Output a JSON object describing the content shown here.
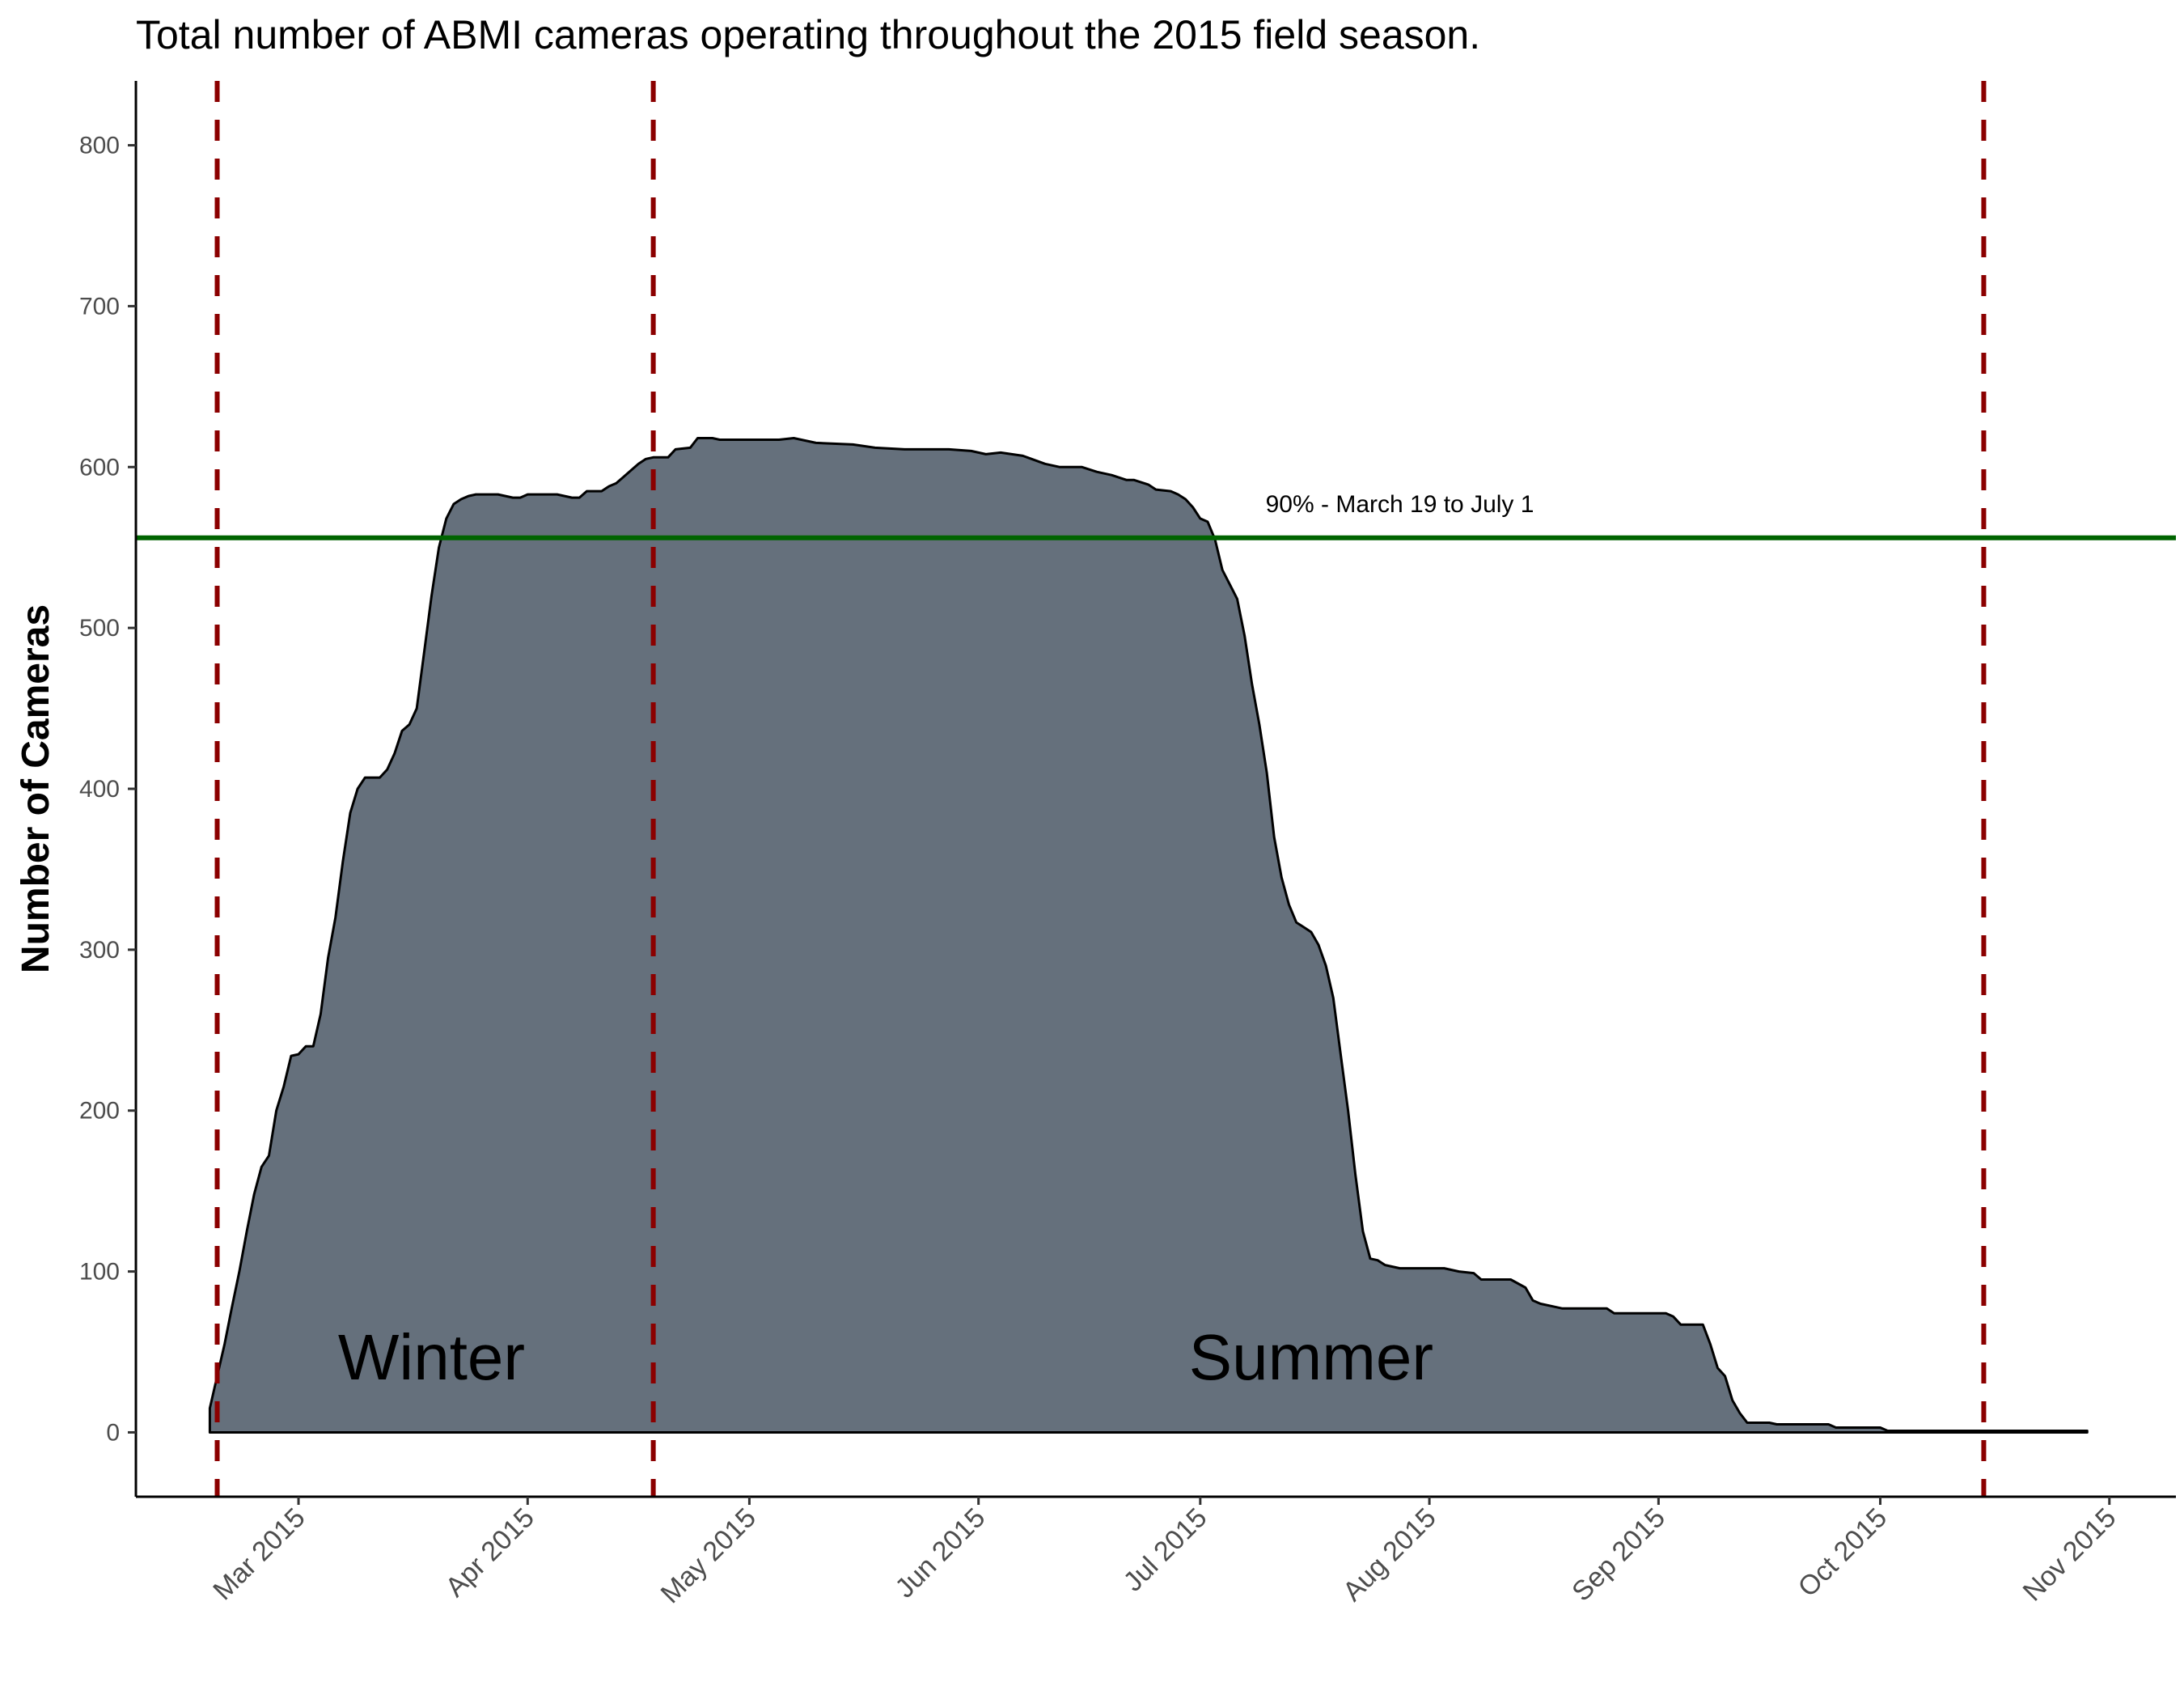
{
  "chart_data": {
    "type": "area",
    "title": "Total number of ABMI cameras operating throughout the 2015 field season.",
    "xlabel": "",
    "ylabel": "Number of Cameras",
    "xlim": [
      "2015-02-07",
      "2015-11-10"
    ],
    "ylim": [
      -40,
      840
    ],
    "y_ticks": [
      0,
      100,
      200,
      300,
      400,
      500,
      600,
      700,
      800
    ],
    "x_ticks": [
      {
        "date": "2015-03-01",
        "label": "Mar 2015"
      },
      {
        "date": "2015-04-01",
        "label": "Apr 2015"
      },
      {
        "date": "2015-05-01",
        "label": "May 2015"
      },
      {
        "date": "2015-06-01",
        "label": "Jun 2015"
      },
      {
        "date": "2015-07-01",
        "label": "Jul 2015"
      },
      {
        "date": "2015-08-01",
        "label": "Aug 2015"
      },
      {
        "date": "2015-09-01",
        "label": "Sep 2015"
      },
      {
        "date": "2015-10-01",
        "label": "Oct 2015"
      },
      {
        "date": "2015-11-01",
        "label": "Nov 2015"
      }
    ],
    "grid": false,
    "fill_color": "#65707c",
    "series": [
      {
        "name": "",
        "points": [
          [
            "2015-02-17",
            0
          ],
          [
            "2015-02-17",
            15
          ],
          [
            "2015-02-18",
            35
          ],
          [
            "2015-02-19",
            55
          ],
          [
            "2015-02-20",
            78
          ],
          [
            "2015-02-21",
            100
          ],
          [
            "2015-02-22",
            125
          ],
          [
            "2015-02-23",
            148
          ],
          [
            "2015-02-24",
            165
          ],
          [
            "2015-02-25",
            172
          ],
          [
            "2015-02-26",
            200
          ],
          [
            "2015-02-27",
            215
          ],
          [
            "2015-02-28",
            234
          ],
          [
            "2015-03-01",
            235
          ],
          [
            "2015-03-02",
            240
          ],
          [
            "2015-03-03",
            240
          ],
          [
            "2015-03-04",
            260
          ],
          [
            "2015-03-05",
            295
          ],
          [
            "2015-03-06",
            320
          ],
          [
            "2015-03-07",
            355
          ],
          [
            "2015-03-08",
            385
          ],
          [
            "2015-03-09",
            400
          ],
          [
            "2015-03-10",
            407
          ],
          [
            "2015-03-12",
            407
          ],
          [
            "2015-03-13",
            412
          ],
          [
            "2015-03-14",
            422
          ],
          [
            "2015-03-15",
            436
          ],
          [
            "2015-03-16",
            440
          ],
          [
            "2015-03-17",
            450
          ],
          [
            "2015-03-18",
            485
          ],
          [
            "2015-03-19",
            520
          ],
          [
            "2015-03-20",
            550
          ],
          [
            "2015-03-21",
            568
          ],
          [
            "2015-03-22",
            577
          ],
          [
            "2015-03-23",
            580
          ],
          [
            "2015-03-24",
            582
          ],
          [
            "2015-03-25",
            583
          ],
          [
            "2015-03-28",
            583
          ],
          [
            "2015-03-30",
            581
          ],
          [
            "2015-03-31",
            581
          ],
          [
            "2015-04-01",
            583
          ],
          [
            "2015-04-05",
            583
          ],
          [
            "2015-04-07",
            581
          ],
          [
            "2015-04-08",
            581
          ],
          [
            "2015-04-09",
            585
          ],
          [
            "2015-04-11",
            585
          ],
          [
            "2015-04-12",
            588
          ],
          [
            "2015-04-13",
            590
          ],
          [
            "2015-04-14",
            594
          ],
          [
            "2015-04-15",
            598
          ],
          [
            "2015-04-16",
            602
          ],
          [
            "2015-04-17",
            605
          ],
          [
            "2015-04-18",
            606
          ],
          [
            "2015-04-20",
            606
          ],
          [
            "2015-04-21",
            611
          ],
          [
            "2015-04-23",
            612
          ],
          [
            "2015-04-24",
            618
          ],
          [
            "2015-04-26",
            618
          ],
          [
            "2015-04-27",
            617
          ],
          [
            "2015-05-05",
            617
          ],
          [
            "2015-05-07",
            618
          ],
          [
            "2015-05-10",
            615
          ],
          [
            "2015-05-15",
            614
          ],
          [
            "2015-05-18",
            612
          ],
          [
            "2015-05-22",
            611
          ],
          [
            "2015-05-28",
            611
          ],
          [
            "2015-05-31",
            610
          ],
          [
            "2015-06-02",
            608
          ],
          [
            "2015-06-04",
            609
          ],
          [
            "2015-06-07",
            607
          ],
          [
            "2015-06-10",
            602
          ],
          [
            "2015-06-12",
            600
          ],
          [
            "2015-06-15",
            600
          ],
          [
            "2015-06-17",
            597
          ],
          [
            "2015-06-19",
            595
          ],
          [
            "2015-06-21",
            592
          ],
          [
            "2015-06-22",
            592
          ],
          [
            "2015-06-24",
            589
          ],
          [
            "2015-06-25",
            586
          ],
          [
            "2015-06-27",
            585
          ],
          [
            "2015-06-28",
            583
          ],
          [
            "2015-06-29",
            580
          ],
          [
            "2015-06-30",
            575
          ],
          [
            "2015-07-01",
            568
          ],
          [
            "2015-07-02",
            566
          ],
          [
            "2015-07-03",
            555
          ],
          [
            "2015-07-04",
            536
          ],
          [
            "2015-07-05",
            527
          ],
          [
            "2015-07-06",
            518
          ],
          [
            "2015-07-07",
            495
          ],
          [
            "2015-07-08",
            465
          ],
          [
            "2015-07-09",
            440
          ],
          [
            "2015-07-10",
            410
          ],
          [
            "2015-07-11",
            370
          ],
          [
            "2015-07-12",
            345
          ],
          [
            "2015-07-13",
            328
          ],
          [
            "2015-07-14",
            317
          ],
          [
            "2015-07-15",
            314
          ],
          [
            "2015-07-16",
            311
          ],
          [
            "2015-07-17",
            303
          ],
          [
            "2015-07-18",
            290
          ],
          [
            "2015-07-19",
            270
          ],
          [
            "2015-07-20",
            235
          ],
          [
            "2015-07-21",
            200
          ],
          [
            "2015-07-22",
            160
          ],
          [
            "2015-07-23",
            125
          ],
          [
            "2015-07-24",
            108
          ],
          [
            "2015-07-25",
            107
          ],
          [
            "2015-07-26",
            104
          ],
          [
            "2015-07-28",
            102
          ],
          [
            "2015-08-03",
            102
          ],
          [
            "2015-08-05",
            100
          ],
          [
            "2015-08-07",
            99
          ],
          [
            "2015-08-08",
            95
          ],
          [
            "2015-08-12",
            95
          ],
          [
            "2015-08-14",
            90
          ],
          [
            "2015-08-15",
            82
          ],
          [
            "2015-08-16",
            80
          ],
          [
            "2015-08-18",
            78
          ],
          [
            "2015-08-19",
            77
          ],
          [
            "2015-08-25",
            77
          ],
          [
            "2015-08-26",
            74
          ],
          [
            "2015-09-02",
            74
          ],
          [
            "2015-09-03",
            72
          ],
          [
            "2015-09-04",
            67
          ],
          [
            "2015-09-07",
            67
          ],
          [
            "2015-09-08",
            55
          ],
          [
            "2015-09-09",
            40
          ],
          [
            "2015-09-10",
            35
          ],
          [
            "2015-09-11",
            20
          ],
          [
            "2015-09-12",
            12
          ],
          [
            "2015-09-13",
            6
          ],
          [
            "2015-09-16",
            6
          ],
          [
            "2015-09-17",
            5
          ],
          [
            "2015-09-24",
            5
          ],
          [
            "2015-09-25",
            3
          ],
          [
            "2015-10-01",
            3
          ],
          [
            "2015-10-02",
            1
          ],
          [
            "2015-10-29",
            1
          ],
          [
            "2015-10-29",
            0
          ]
        ]
      }
    ],
    "reference_lines": [
      {
        "orientation": "vertical",
        "date": "2015-02-18",
        "color": "#8b0000",
        "style": "dashed"
      },
      {
        "orientation": "vertical",
        "date": "2015-04-18",
        "color": "#8b0000",
        "style": "dashed"
      },
      {
        "orientation": "vertical",
        "date": "2015-10-15",
        "color": "#8b0000",
        "style": "dashed"
      },
      {
        "orientation": "horizontal",
        "y": 556,
        "color": "#006400",
        "style": "solid"
      }
    ],
    "annotations": [
      {
        "text": "90% - March 19 to July 1",
        "date": "2015-07-28",
        "y": 572,
        "kind": "note"
      },
      {
        "text": "Winter",
        "date": "2015-03-19",
        "y": 33,
        "kind": "season"
      },
      {
        "text": "Summer",
        "date": "2015-07-16",
        "y": 33,
        "kind": "season"
      }
    ]
  }
}
